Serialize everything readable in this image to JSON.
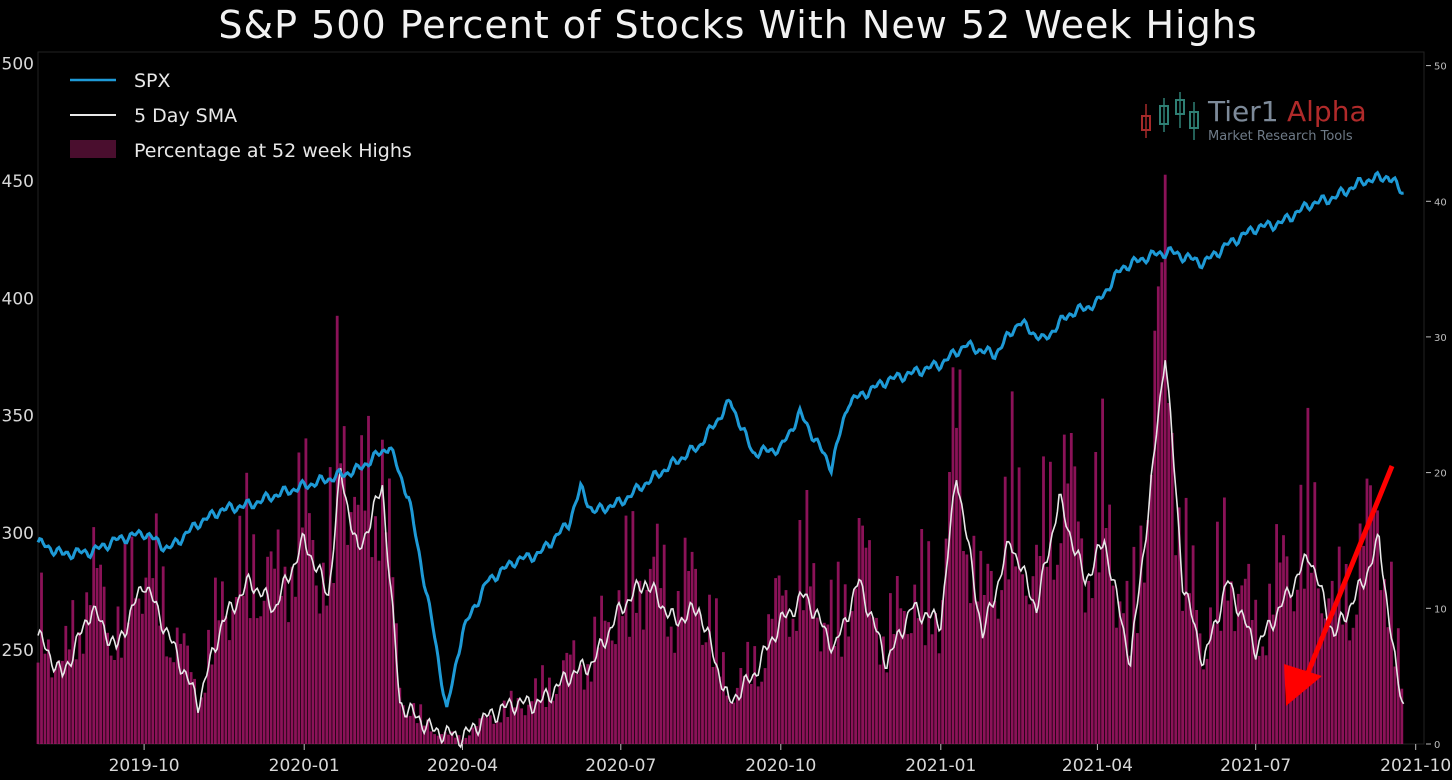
{
  "chart_data": {
    "type": "line",
    "title": "S&P 500 Percent of Stocks With New 52 Week Highs",
    "xlabel": "",
    "ylabel": "",
    "x_ticks": [
      "2019-10",
      "2020-01",
      "2020-04",
      "2020-07",
      "2020-10",
      "2021-01",
      "2021-04",
      "2021-07",
      "2021-10"
    ],
    "x_range": [
      "2019-08-01",
      "2021-09-30"
    ],
    "ylim_left": [
      210,
      505
    ],
    "yticks_left": [
      "500",
      "450",
      "400",
      "350",
      "300",
      "250"
    ],
    "ylim_right": [
      0,
      51
    ],
    "yticks_right": [
      "50",
      "40",
      "30",
      "20",
      "10",
      "0"
    ],
    "legend": [
      "SPX",
      "5 Day SMA",
      "Percentage at 52 week Highs"
    ],
    "legend_position": "top-left",
    "grid": false,
    "colors": {
      "spx": "#1e9ad6",
      "sma": "#e8e8e8",
      "bars": "#c0197a",
      "arrow": "#ff0000",
      "background": "#000000"
    },
    "watermark": {
      "word1": "Tier1",
      "word2": "Alpha",
      "tagline": "Market Research Tools"
    },
    "series": [
      {
        "name": "SPX",
        "axis": "left",
        "x": [
          "2019-08-01",
          "2019-08-15",
          "2019-09-01",
          "2019-09-15",
          "2019-10-01",
          "2019-10-15",
          "2019-11-01",
          "2019-11-15",
          "2019-12-01",
          "2019-12-15",
          "2020-01-01",
          "2020-01-15",
          "2020-02-01",
          "2020-02-19",
          "2020-03-01",
          "2020-03-15",
          "2020-03-23",
          "2020-04-01",
          "2020-04-15",
          "2020-05-01",
          "2020-05-15",
          "2020-06-01",
          "2020-06-08",
          "2020-06-15",
          "2020-07-01",
          "2020-07-15",
          "2020-08-01",
          "2020-08-15",
          "2020-09-02",
          "2020-09-15",
          "2020-10-01",
          "2020-10-12",
          "2020-10-30",
          "2020-11-09",
          "2020-11-15",
          "2020-12-01",
          "2020-12-15",
          "2021-01-01",
          "2021-01-15",
          "2021-02-01",
          "2021-02-15",
          "2021-03-01",
          "2021-03-15",
          "2021-04-01",
          "2021-04-15",
          "2021-05-01",
          "2021-05-12",
          "2021-06-01",
          "2021-06-15",
          "2021-07-01",
          "2021-07-15",
          "2021-08-01",
          "2021-08-15",
          "2021-09-01",
          "2021-09-15",
          "2021-09-24"
        ],
        "y": [
          296,
          291,
          292,
          297,
          300,
          293,
          304,
          310,
          312,
          316,
          320,
          323,
          327,
          337,
          315,
          260,
          224,
          258,
          279,
          288,
          291,
          304,
          319,
          309,
          313,
          321,
          330,
          337,
          356,
          334,
          336,
          351,
          328,
          356,
          358,
          365,
          368,
          372,
          380,
          376,
          390,
          382,
          393,
          398,
          413,
          418,
          420,
          415,
          423,
          430,
          432,
          440,
          443,
          450,
          452,
          445
        ]
      },
      {
        "name": "5 Day SMA",
        "axis": "right",
        "x": [
          "2019-08-01",
          "2019-08-15",
          "2019-09-01",
          "2019-09-15",
          "2019-10-01",
          "2019-10-15",
          "2019-11-01",
          "2019-11-15",
          "2019-12-01",
          "2019-12-15",
          "2020-01-01",
          "2020-01-15",
          "2020-01-22",
          "2020-02-01",
          "2020-02-15",
          "2020-02-25",
          "2020-03-15",
          "2020-04-01",
          "2020-04-15",
          "2020-05-01",
          "2020-05-15",
          "2020-06-01",
          "2020-06-15",
          "2020-07-01",
          "2020-07-15",
          "2020-08-01",
          "2020-08-15",
          "2020-09-01",
          "2020-09-15",
          "2020-10-01",
          "2020-10-15",
          "2020-11-01",
          "2020-11-15",
          "2020-12-01",
          "2020-12-15",
          "2021-01-01",
          "2021-01-10",
          "2021-01-25",
          "2021-02-10",
          "2021-02-25",
          "2021-03-10",
          "2021-03-25",
          "2021-04-05",
          "2021-04-20",
          "2021-05-01",
          "2021-05-10",
          "2021-05-20",
          "2021-06-01",
          "2021-06-15",
          "2021-07-01",
          "2021-07-15",
          "2021-08-01",
          "2021-08-15",
          "2021-09-01",
          "2021-09-10",
          "2021-09-20",
          "2021-09-24"
        ],
        "y": [
          8,
          5,
          10,
          7,
          12,
          8,
          3,
          9,
          12,
          10,
          15,
          11,
          20,
          14,
          19,
          3,
          1,
          0.5,
          2,
          3,
          3,
          5,
          6,
          10,
          12,
          9,
          10,
          3,
          5,
          9,
          11,
          7,
          12,
          6,
          10,
          9,
          20,
          8,
          15,
          10,
          18,
          12,
          15,
          6,
          18,
          29,
          12,
          6,
          12,
          7,
          10,
          14,
          8,
          12,
          15,
          5,
          3
        ]
      },
      {
        "name": "Percentage at 52 week Highs",
        "axis": "right",
        "type": "bar",
        "note_in_data": false
      }
    ],
    "bar_profile": {
      "x": [
        "2019-08-01",
        "2019-08-15",
        "2019-09-01",
        "2019-09-15",
        "2019-10-01",
        "2019-10-15",
        "2019-11-01",
        "2019-11-15",
        "2019-12-01",
        "2019-12-15",
        "2020-01-01",
        "2020-01-15",
        "2020-01-22",
        "2020-02-01",
        "2020-02-15",
        "2020-02-25",
        "2020-03-15",
        "2020-04-01",
        "2020-04-15",
        "2020-05-01",
        "2020-05-15",
        "2020-06-01",
        "2020-06-15",
        "2020-07-01",
        "2020-07-15",
        "2020-08-01",
        "2020-08-15",
        "2020-09-01",
        "2020-09-15",
        "2020-10-01",
        "2020-10-15",
        "2020-11-01",
        "2020-11-15",
        "2020-12-01",
        "2020-12-15",
        "2021-01-01",
        "2021-01-10",
        "2021-01-25",
        "2021-02-10",
        "2021-02-25",
        "2021-03-10",
        "2021-03-25",
        "2021-04-05",
        "2021-04-20",
        "2021-05-01",
        "2021-05-10",
        "2021-05-20",
        "2021-06-01",
        "2021-06-15",
        "2021-07-01",
        "2021-07-15",
        "2021-08-01",
        "2021-08-15",
        "2021-09-01",
        "2021-09-10",
        "2021-09-20",
        "2021-09-24"
      ],
      "y": [
        10,
        6,
        13,
        9,
        15,
        10,
        4,
        11,
        15,
        12,
        18,
        13,
        28,
        17,
        23,
        4,
        1,
        0.5,
        2,
        3,
        4,
        6,
        7,
        12,
        14,
        11,
        13,
        4,
        6,
        11,
        14,
        9,
        15,
        8,
        12,
        11,
        25,
        10,
        19,
        13,
        22,
        15,
        19,
        8,
        23,
        35,
        15,
        8,
        15,
        9,
        13,
        18,
        10,
        15,
        19,
        7,
        4
      ]
    }
  }
}
